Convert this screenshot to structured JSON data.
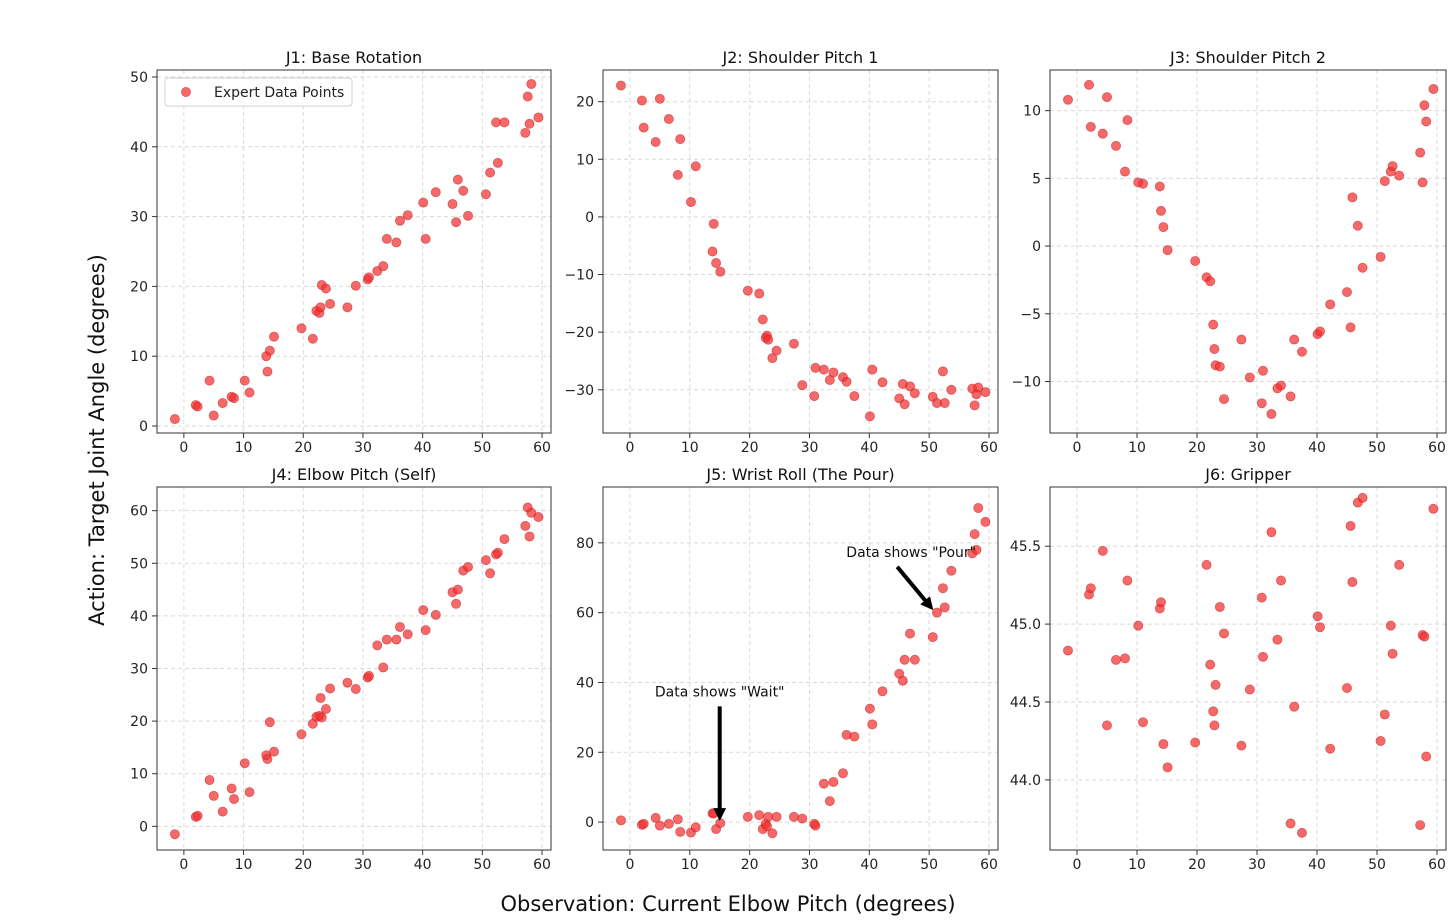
{
  "figure": {
    "xlabel": "Observation: Current Elbow Pitch (degrees)",
    "ylabel": "Action: Target Joint Angle (degrees)",
    "marker_color": "#f03030",
    "legend_entry": "Expert Data Points"
  },
  "chart_data": [
    {
      "type": "scatter",
      "title": "J1: Base Rotation",
      "xlim": [
        -4.5,
        61.5
      ],
      "ylim": [
        -1,
        51
      ],
      "xticks": [
        0,
        10,
        20,
        30,
        40,
        50,
        60
      ],
      "yticks": [
        0,
        10,
        20,
        30,
        40,
        50
      ],
      "grid": true,
      "legend": "top-left",
      "series": [
        {
          "name": "Expert Data Points",
          "x": [
            -1.5,
            2,
            2.3,
            4.3,
            5,
            6.5,
            8,
            8.4,
            10.2,
            11,
            13.8,
            14,
            14.4,
            15.1,
            19.7,
            21.6,
            22.2,
            22.7,
            22.9,
            23.1,
            23.8,
            24.5,
            27.4,
            28.8,
            30.8,
            31,
            32.4,
            33.4,
            34,
            35.6,
            36.2,
            37.5,
            40.1,
            40.5,
            42.2,
            45,
            45.6,
            45.9,
            46.8,
            47.6,
            50.6,
            51.3,
            52.3,
            52.6,
            53.7,
            57.2,
            57.6,
            57.9,
            58.2,
            59.4
          ],
          "y": [
            1,
            3,
            2.8,
            6.5,
            1.5,
            3.3,
            4.2,
            4,
            6.5,
            4.8,
            10,
            7.8,
            10.8,
            12.8,
            14,
            12.5,
            16.5,
            16.2,
            17,
            20.2,
            19.7,
            17.5,
            17,
            20.1,
            21,
            21.3,
            22.2,
            22.9,
            26.8,
            26.3,
            29.4,
            30.2,
            32,
            26.8,
            33.5,
            31.8,
            29.2,
            35.3,
            33.7,
            30.1,
            33.2,
            36.3,
            43.5,
            37.7,
            43.5,
            42,
            47.2,
            43.3,
            49,
            44.2
          ]
        }
      ]
    },
    {
      "type": "scatter",
      "title": "J2: Shoulder Pitch 1",
      "xlim": [
        -4.5,
        61.5
      ],
      "ylim": [
        -37.5,
        25.5
      ],
      "xticks": [
        0,
        10,
        20,
        30,
        40,
        50,
        60
      ],
      "yticks": [
        -30,
        -20,
        -10,
        0,
        10,
        20
      ],
      "grid": true,
      "series": [
        {
          "name": "Expert Data Points",
          "x": [
            -1.5,
            2,
            2.3,
            4.3,
            5,
            6.5,
            8,
            8.4,
            10.2,
            11,
            13.8,
            14,
            14.4,
            15.1,
            19.7,
            21.6,
            22.2,
            22.7,
            22.9,
            23.1,
            23.8,
            24.5,
            27.4,
            28.8,
            30.8,
            31,
            32.4,
            33.4,
            34,
            35.6,
            36.2,
            37.5,
            40.1,
            40.5,
            42.2,
            45,
            45.6,
            45.9,
            46.8,
            47.6,
            50.6,
            51.3,
            52.3,
            52.6,
            53.7,
            57.2,
            57.6,
            57.9,
            58.2,
            59.4
          ],
          "y": [
            22.8,
            20.2,
            15.5,
            13,
            20.5,
            17,
            7.3,
            13.5,
            2.6,
            8.8,
            -6,
            -1.2,
            -8,
            -9.5,
            -12.8,
            -13.3,
            -17.8,
            -21,
            -20.6,
            -21.3,
            -24.5,
            -23.2,
            -22,
            -29.2,
            -31.1,
            -26.2,
            -26.5,
            -28.3,
            -27,
            -27.8,
            -28.6,
            -31.1,
            -34.6,
            -26.5,
            -28.7,
            -31.5,
            -29,
            -32.5,
            -29.4,
            -30.6,
            -31.2,
            -32.3,
            -26.8,
            -32.3,
            -30,
            -29.8,
            -32.7,
            -30.8,
            -29.6,
            -30.4
          ]
        }
      ]
    },
    {
      "type": "scatter",
      "title": "J3: Shoulder Pitch 2",
      "xlim": [
        -4.5,
        61.5
      ],
      "ylim": [
        -13.8,
        13
      ],
      "xticks": [
        0,
        10,
        20,
        30,
        40,
        50,
        60
      ],
      "yticks": [
        -10,
        -5,
        0,
        5,
        10
      ],
      "grid": true,
      "series": [
        {
          "name": "Expert Data Points",
          "x": [
            -1.5,
            2,
            2.3,
            4.3,
            5,
            6.5,
            8,
            8.4,
            10.2,
            11,
            13.8,
            14,
            14.4,
            15.1,
            19.7,
            21.6,
            22.2,
            22.7,
            22.9,
            23.1,
            23.8,
            24.5,
            27.4,
            28.8,
            30.8,
            31,
            32.4,
            33.4,
            34,
            35.6,
            36.2,
            37.5,
            40.1,
            40.5,
            42.2,
            45,
            45.6,
            45.9,
            46.8,
            47.6,
            50.6,
            51.3,
            52.3,
            52.6,
            53.7,
            57.2,
            57.6,
            57.9,
            58.2,
            59.4
          ],
          "y": [
            10.8,
            11.9,
            8.8,
            8.3,
            11,
            7.4,
            5.5,
            9.3,
            4.7,
            4.6,
            4.4,
            2.6,
            1.4,
            -0.3,
            -1.1,
            -2.3,
            -2.6,
            -5.8,
            -7.6,
            -8.8,
            -8.9,
            -11.3,
            -6.9,
            -9.7,
            -11.6,
            -9.2,
            -12.4,
            -10.5,
            -10.3,
            -11.1,
            -6.9,
            -7.8,
            -6.5,
            -6.3,
            -4.3,
            -3.4,
            -6,
            3.6,
            1.5,
            -1.6,
            -0.8,
            4.8,
            5.5,
            5.9,
            5.2,
            6.9,
            4.7,
            10.4,
            9.2,
            11.6
          ]
        }
      ]
    },
    {
      "type": "scatter",
      "title": "J4: Elbow Pitch (Self)",
      "xlim": [
        -4.5,
        61.5
      ],
      "ylim": [
        -4.5,
        64.5
      ],
      "xticks": [
        0,
        10,
        20,
        30,
        40,
        50,
        60
      ],
      "yticks": [
        0,
        10,
        20,
        30,
        40,
        50,
        60
      ],
      "grid": true,
      "series": [
        {
          "name": "Expert Data Points",
          "x": [
            -1.5,
            2,
            2.3,
            4.3,
            5,
            6.5,
            8,
            8.4,
            10.2,
            11,
            13.8,
            14,
            14.4,
            15.1,
            19.7,
            21.6,
            22.2,
            22.7,
            22.9,
            23.1,
            23.8,
            24.5,
            27.4,
            28.8,
            30.8,
            31,
            32.4,
            33.4,
            34,
            35.6,
            36.2,
            37.5,
            40.1,
            40.5,
            42.2,
            45,
            45.6,
            45.9,
            46.8,
            47.6,
            50.6,
            51.3,
            52.3,
            52.6,
            53.7,
            57.2,
            57.6,
            57.9,
            58.2,
            59.4
          ],
          "y": [
            -1.5,
            1.8,
            2,
            8.8,
            5.8,
            2.8,
            7.2,
            5.2,
            12,
            6.5,
            13.5,
            12.8,
            19.8,
            14.2,
            17.5,
            19.5,
            20.8,
            21,
            24.4,
            20.7,
            22.3,
            26.2,
            27.3,
            26.1,
            28.3,
            28.6,
            34.4,
            30.2,
            35.5,
            35.5,
            37.9,
            36.5,
            41.1,
            37.3,
            40.2,
            44.5,
            42.3,
            45,
            48.6,
            49.3,
            50.6,
            48.1,
            51.7,
            52,
            54.6,
            57.1,
            60.6,
            55.1,
            59.6,
            58.8
          ]
        }
      ]
    },
    {
      "type": "scatter",
      "title": "J5: Wrist Roll (The Pour)",
      "xlim": [
        -4.5,
        61.5
      ],
      "ylim": [
        -8,
        96
      ],
      "xticks": [
        0,
        10,
        20,
        30,
        40,
        50,
        60
      ],
      "yticks": [
        0,
        20,
        40,
        60,
        80
      ],
      "grid": true,
      "annotations": [
        {
          "text": "Data shows \"Wait\"",
          "x": 15,
          "y": 36,
          "arrow_to": [
            15,
            1
          ]
        },
        {
          "text": "Data shows \"Pour\"",
          "x": 47,
          "y": 76,
          "arrow_to": [
            50,
            61
          ]
        }
      ],
      "series": [
        {
          "name": "Expert Data Points",
          "x": [
            -1.5,
            2,
            2.3,
            4.3,
            5,
            6.5,
            8,
            8.4,
            10.2,
            11,
            13.8,
            14,
            14.4,
            15.1,
            19.7,
            21.6,
            22.2,
            22.7,
            22.9,
            23.1,
            23.8,
            24.5,
            27.4,
            28.8,
            30.8,
            31,
            32.4,
            33.4,
            34,
            35.6,
            36.2,
            37.5,
            40.1,
            40.5,
            42.2,
            45,
            45.6,
            45.9,
            46.8,
            47.6,
            50.6,
            51.3,
            52.3,
            52.6,
            53.7,
            57.2,
            57.6,
            57.9,
            58.2,
            59.4
          ],
          "y": [
            0.5,
            -0.8,
            -0.5,
            1.2,
            -1,
            -0.5,
            0.8,
            -2.8,
            -3,
            -1.5,
            2.5,
            2.5,
            -2,
            -0.3,
            1.5,
            2,
            -2,
            -0.5,
            -1.2,
            1.5,
            -3.2,
            1.5,
            1.5,
            1,
            -0.5,
            -1,
            11,
            6,
            11.5,
            14,
            25,
            24.5,
            32.5,
            28,
            37.5,
            42.5,
            40.5,
            46.5,
            54,
            46.5,
            53,
            60,
            67,
            61.5,
            72,
            77,
            82.5,
            78,
            90,
            86
          ]
        }
      ]
    },
    {
      "type": "scatter",
      "title": "J6: Gripper",
      "xlim": [
        -4.5,
        61.5
      ],
      "ylim": [
        43.55,
        45.88
      ],
      "xticks": [
        0,
        10,
        20,
        30,
        40,
        50,
        60
      ],
      "yticks": [
        44.0,
        44.5,
        45.0,
        45.5
      ],
      "yticklabels": [
        "44.0",
        "44.5",
        "45.0",
        "45.5"
      ],
      "grid": true,
      "series": [
        {
          "name": "Expert Data Points",
          "x": [
            -1.5,
            2,
            2.3,
            4.3,
            5,
            6.5,
            8,
            8.4,
            10.2,
            11,
            13.8,
            14,
            14.4,
            15.1,
            19.7,
            21.6,
            22.2,
            22.7,
            22.9,
            23.1,
            23.8,
            24.5,
            27.4,
            28.8,
            30.8,
            31,
            32.4,
            33.4,
            34,
            35.6,
            36.2,
            37.5,
            40.1,
            40.5,
            42.2,
            45,
            45.6,
            45.9,
            46.8,
            47.6,
            50.6,
            51.3,
            52.3,
            52.6,
            53.7,
            57.2,
            57.6,
            57.9,
            58.2,
            59.4
          ],
          "y": [
            44.83,
            45.19,
            45.23,
            45.47,
            44.35,
            44.77,
            44.78,
            45.28,
            44.99,
            44.37,
            45.1,
            45.14,
            44.23,
            44.08,
            44.24,
            45.38,
            44.74,
            44.44,
            44.35,
            44.61,
            45.11,
            44.94,
            44.22,
            44.58,
            45.17,
            44.79,
            45.59,
            44.9,
            45.28,
            43.72,
            44.47,
            43.66,
            45.05,
            44.98,
            44.2,
            44.59,
            45.63,
            45.27,
            45.78,
            45.81,
            44.25,
            44.42,
            44.99,
            44.81,
            45.38,
            43.71,
            44.93,
            44.92,
            44.15,
            45.74
          ]
        }
      ]
    }
  ]
}
